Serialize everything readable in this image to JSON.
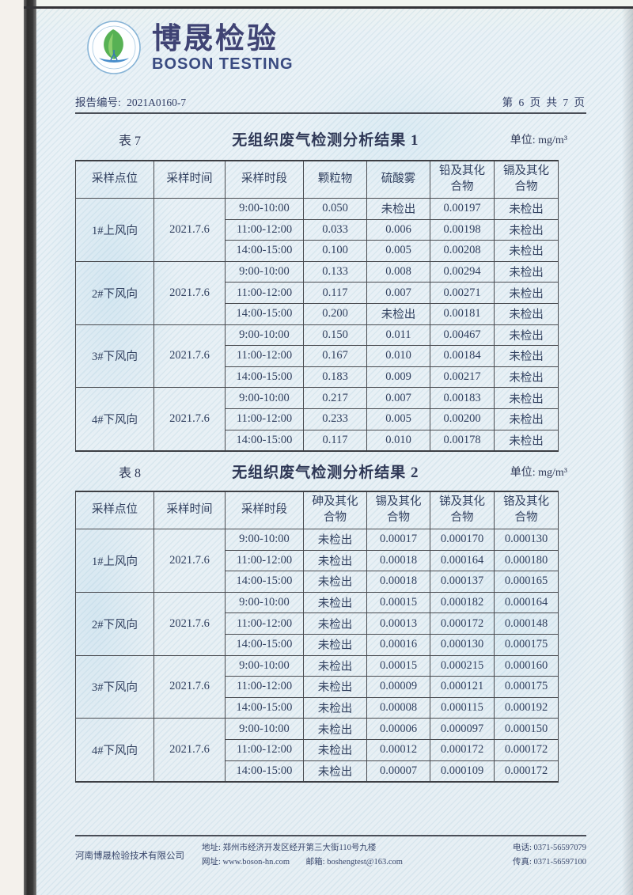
{
  "header": {
    "brand_cn": "博晟检验",
    "brand_en": "BOSON TESTING"
  },
  "report": {
    "number_label": "报告编号:",
    "number": "2021A0160-7",
    "page_info": "第 6 页 共 7 页"
  },
  "table7": {
    "label": "表 7",
    "title": "无组织废气检测分析结果 1",
    "unit": "单位: mg/m³",
    "columns": [
      "采样点位",
      "采样时间",
      "采样时段",
      "颗粒物",
      "硫酸雾",
      "铅及其化\n合物",
      "镉及其化\n合物"
    ],
    "groups": [
      {
        "site": "1#上风向",
        "date": "2021.7.6",
        "rows": [
          [
            "9:00-10:00",
            "0.050",
            "未检出",
            "0.00197",
            "未检出"
          ],
          [
            "11:00-12:00",
            "0.033",
            "0.006",
            "0.00198",
            "未检出"
          ],
          [
            "14:00-15:00",
            "0.100",
            "0.005",
            "0.00208",
            "未检出"
          ]
        ]
      },
      {
        "site": "2#下风向",
        "date": "2021.7.6",
        "rows": [
          [
            "9:00-10:00",
            "0.133",
            "0.008",
            "0.00294",
            "未检出"
          ],
          [
            "11:00-12:00",
            "0.117",
            "0.007",
            "0.00271",
            "未检出"
          ],
          [
            "14:00-15:00",
            "0.200",
            "未检出",
            "0.00181",
            "未检出"
          ]
        ]
      },
      {
        "site": "3#下风向",
        "date": "2021.7.6",
        "rows": [
          [
            "9:00-10:00",
            "0.150",
            "0.011",
            "0.00467",
            "未检出"
          ],
          [
            "11:00-12:00",
            "0.167",
            "0.010",
            "0.00184",
            "未检出"
          ],
          [
            "14:00-15:00",
            "0.183",
            "0.009",
            "0.00217",
            "未检出"
          ]
        ]
      },
      {
        "site": "4#下风向",
        "date": "2021.7.6",
        "rows": [
          [
            "9:00-10:00",
            "0.217",
            "0.007",
            "0.00183",
            "未检出"
          ],
          [
            "11:00-12:00",
            "0.233",
            "0.005",
            "0.00200",
            "未检出"
          ],
          [
            "14:00-15:00",
            "0.117",
            "0.010",
            "0.00178",
            "未检出"
          ]
        ]
      }
    ]
  },
  "table8": {
    "label": "表 8",
    "title": "无组织废气检测分析结果 2",
    "unit": "单位: mg/m³",
    "columns": [
      "采样点位",
      "采样时间",
      "采样时段",
      "砷及其化\n合物",
      "锡及其化\n合物",
      "锑及其化\n合物",
      "铬及其化\n合物"
    ],
    "groups": [
      {
        "site": "1#上风向",
        "date": "2021.7.6",
        "rows": [
          [
            "9:00-10:00",
            "未检出",
            "0.00017",
            "0.000170",
            "0.000130"
          ],
          [
            "11:00-12:00",
            "未检出",
            "0.00018",
            "0.000164",
            "0.000180"
          ],
          [
            "14:00-15:00",
            "未检出",
            "0.00018",
            "0.000137",
            "0.000165"
          ]
        ]
      },
      {
        "site": "2#下风向",
        "date": "2021.7.6",
        "rows": [
          [
            "9:00-10:00",
            "未检出",
            "0.00015",
            "0.000182",
            "0.000164"
          ],
          [
            "11:00-12:00",
            "未检出",
            "0.00013",
            "0.000172",
            "0.000148"
          ],
          [
            "14:00-15:00",
            "未检出",
            "0.00016",
            "0.000130",
            "0.000175"
          ]
        ]
      },
      {
        "site": "3#下风向",
        "date": "2021.7.6",
        "rows": [
          [
            "9:00-10:00",
            "未检出",
            "0.00015",
            "0.000215",
            "0.000160"
          ],
          [
            "11:00-12:00",
            "未检出",
            "0.00009",
            "0.000121",
            "0.000175"
          ],
          [
            "14:00-15:00",
            "未检出",
            "0.00008",
            "0.000115",
            "0.000192"
          ]
        ]
      },
      {
        "site": "4#下风向",
        "date": "2021.7.6",
        "rows": [
          [
            "9:00-10:00",
            "未检出",
            "0.00006",
            "0.000097",
            "0.000150"
          ],
          [
            "11:00-12:00",
            "未检出",
            "0.00012",
            "0.000172",
            "0.000172"
          ],
          [
            "14:00-15:00",
            "未检出",
            "0.00007",
            "0.000109",
            "0.000172"
          ]
        ]
      }
    ]
  },
  "footer": {
    "company": "河南博晟检验技术有限公司",
    "address": "地址: 郑州市经济开发区经开第三大街110号九楼",
    "website": "网址: www.boson-hn.com",
    "email": "邮箱: boshengtest@163.com",
    "phone": "电话: 0371-56597079",
    "fax": "传真: 0371-56597100"
  },
  "colors": {
    "brand": "#3f4374",
    "text": "#31405f",
    "page_bg": "#e7eff4",
    "table_border": "#494b50"
  }
}
